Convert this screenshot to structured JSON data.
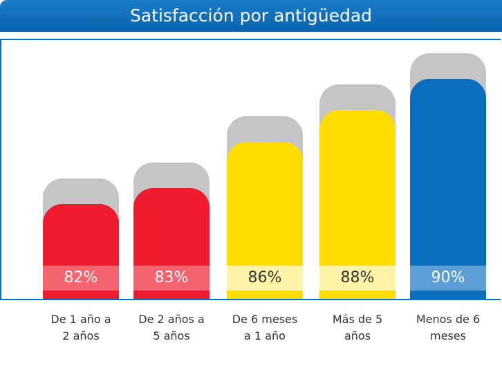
{
  "chart_data": {
    "type": "bar",
    "title": "Satisfacción por antigüedad",
    "categories": [
      "De 1 año a 2 años",
      "De 2 años a 5 años",
      "De 6 meses a 1 año",
      "Más de 5 años",
      "Menos de 6 meses"
    ],
    "values": [
      82,
      83,
      86,
      88,
      90
    ],
    "value_labels": [
      "82%",
      "83%",
      "86%",
      "88%",
      "90%"
    ],
    "colors": [
      "#ee1c2e",
      "#ee1c2e",
      "#ffdd00",
      "#ffdd00",
      "#0a6ebd"
    ],
    "label_colors": [
      "#f4646e",
      "#f4646e",
      "#fff4a8",
      "#fff4a8",
      "#5a9fd8"
    ]
  }
}
